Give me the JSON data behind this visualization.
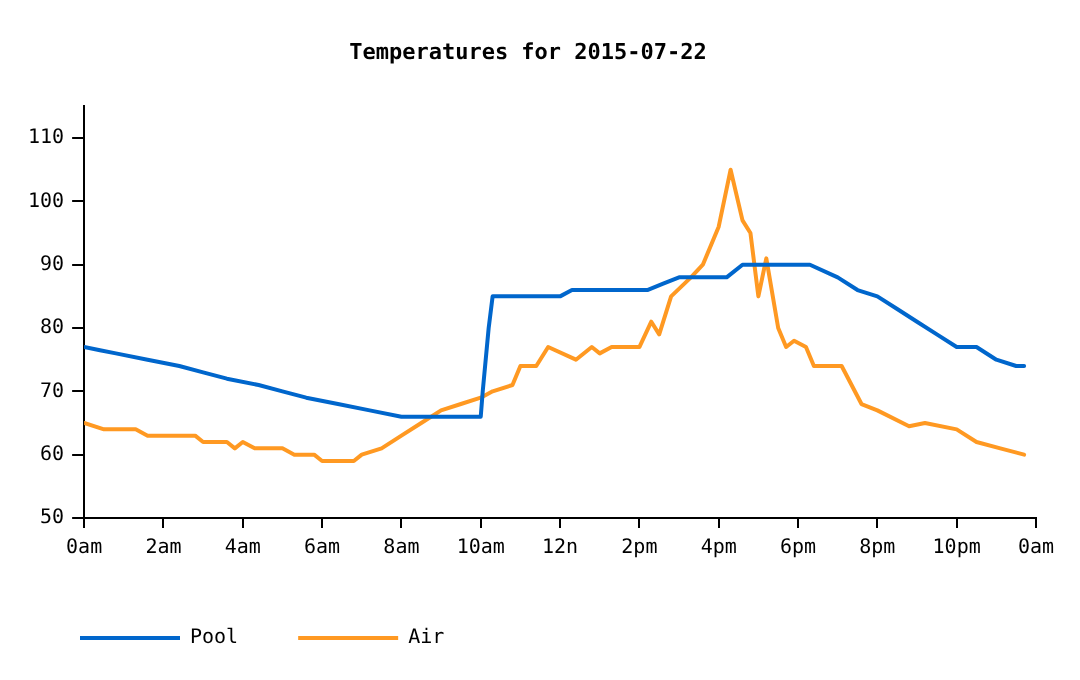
{
  "chart_data": {
    "type": "line",
    "title": "Temperatures for 2015-07-22",
    "xlim": [
      "2015-07-22T00:00",
      "2015-07-23T00:00"
    ],
    "xticks": [
      {
        "value": "2015-07-22T00:00",
        "label": "0am"
      },
      {
        "value": "2015-07-22T02:00",
        "label": "2am"
      },
      {
        "value": "2015-07-22T04:00",
        "label": "4am"
      },
      {
        "value": "2015-07-22T06:00",
        "label": "6am"
      },
      {
        "value": "2015-07-22T08:00",
        "label": "8am"
      },
      {
        "value": "2015-07-22T10:00",
        "label": "10am"
      },
      {
        "value": "2015-07-22T12:00",
        "label": "12n"
      },
      {
        "value": "2015-07-22T14:00",
        "label": "2pm"
      },
      {
        "value": "2015-07-22T16:00",
        "label": "4pm"
      },
      {
        "value": "2015-07-22T18:00",
        "label": "6pm"
      },
      {
        "value": "2015-07-22T20:00",
        "label": "8pm"
      },
      {
        "value": "2015-07-22T22:00",
        "label": "10pm"
      },
      {
        "value": "2015-07-23T00:00",
        "label": "0am"
      }
    ],
    "ylim": [
      50,
      115
    ],
    "yticks": [
      50,
      60,
      70,
      80,
      90,
      100,
      110
    ],
    "grid": false,
    "legend": "bottom left",
    "marker": "none",
    "line_style": "solid",
    "series": [
      {
        "name": "Pool",
        "color": "#0066cc",
        "x": [
          "2015-07-22T00:00",
          "2015-07-22T00:24",
          "2015-07-22T00:48",
          "2015-07-22T01:36",
          "2015-07-22T02:24",
          "2015-07-22T03:00",
          "2015-07-22T03:36",
          "2015-07-22T04:24",
          "2015-07-22T05:00",
          "2015-07-22T05:36",
          "2015-07-22T06:24",
          "2015-07-22T07:12",
          "2015-07-22T08:00",
          "2015-07-22T10:00",
          "2015-07-22T10:03",
          "2015-07-22T10:12",
          "2015-07-22T10:18",
          "2015-07-22T12:00",
          "2015-07-22T12:18",
          "2015-07-22T14:12",
          "2015-07-22T14:36",
          "2015-07-22T15:00",
          "2015-07-22T16:12",
          "2015-07-22T16:36",
          "2015-07-22T18:18",
          "2015-07-22T19:00",
          "2015-07-22T19:30",
          "2015-07-22T20:00",
          "2015-07-22T20:30",
          "2015-07-22T21:00",
          "2015-07-22T21:30",
          "2015-07-22T22:00",
          "2015-07-22T22:30",
          "2015-07-22T23:00",
          "2015-07-22T23:30",
          "2015-07-22T23:42"
        ],
        "values": [
          77,
          76.5,
          76,
          75,
          74,
          73,
          72,
          71,
          70,
          69,
          68,
          67,
          66,
          66,
          70,
          80,
          85,
          85,
          86,
          86,
          87,
          88,
          88,
          90,
          90,
          88,
          86,
          85,
          83,
          81,
          79,
          77,
          77,
          75,
          74,
          74
        ]
      },
      {
        "name": "Air",
        "color": "#ff9922",
        "x": [
          "2015-07-22T00:00",
          "2015-07-22T00:30",
          "2015-07-22T01:18",
          "2015-07-22T01:36",
          "2015-07-22T02:48",
          "2015-07-22T03:00",
          "2015-07-22T03:36",
          "2015-07-22T03:48",
          "2015-07-22T04:00",
          "2015-07-22T04:18",
          "2015-07-22T05:00",
          "2015-07-22T05:18",
          "2015-07-22T05:48",
          "2015-07-22T06:00",
          "2015-07-22T06:48",
          "2015-07-22T07:00",
          "2015-07-22T07:30",
          "2015-07-22T08:00",
          "2015-07-22T08:30",
          "2015-07-22T09:00",
          "2015-07-22T09:30",
          "2015-07-22T10:00",
          "2015-07-22T10:18",
          "2015-07-22T10:48",
          "2015-07-22T11:00",
          "2015-07-22T11:24",
          "2015-07-22T11:42",
          "2015-07-22T12:24",
          "2015-07-22T12:48",
          "2015-07-22T13:00",
          "2015-07-22T13:18",
          "2015-07-22T14:00",
          "2015-07-22T14:18",
          "2015-07-22T14:30",
          "2015-07-22T14:48",
          "2015-07-22T15:18",
          "2015-07-22T15:36",
          "2015-07-22T16:00",
          "2015-07-22T16:18",
          "2015-07-22T16:36",
          "2015-07-22T16:48",
          "2015-07-22T17:00",
          "2015-07-22T17:12",
          "2015-07-22T17:30",
          "2015-07-22T17:42",
          "2015-07-22T17:54",
          "2015-07-22T18:12",
          "2015-07-22T18:24",
          "2015-07-22T19:06",
          "2015-07-22T19:36",
          "2015-07-22T20:00",
          "2015-07-22T20:48",
          "2015-07-22T21:12",
          "2015-07-22T22:00",
          "2015-07-22T22:30",
          "2015-07-22T23:06",
          "2015-07-22T23:42"
        ],
        "values": [
          65,
          64,
          64,
          63,
          63,
          62,
          62,
          61,
          62,
          61,
          61,
          60,
          60,
          59,
          59,
          60,
          61,
          63,
          65,
          67,
          68,
          69,
          70,
          71,
          74,
          74,
          77,
          75,
          77,
          76,
          77,
          77,
          81,
          79,
          85,
          88,
          90,
          96,
          105,
          97,
          95,
          85,
          91,
          80,
          77,
          78,
          77,
          74,
          74,
          68,
          67,
          64.5,
          65,
          64,
          62,
          61,
          60
        ]
      }
    ]
  }
}
